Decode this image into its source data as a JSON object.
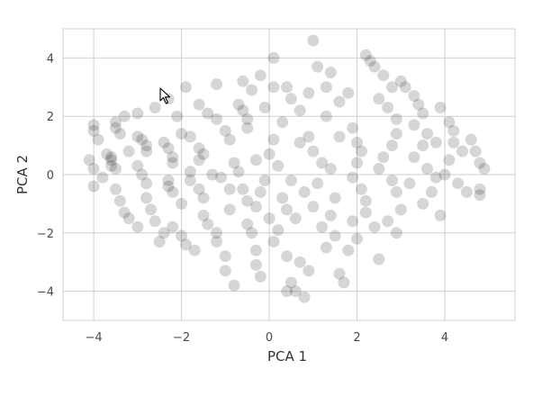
{
  "chart_data": {
    "type": "scatter",
    "title": "",
    "xlabel": "PCA 1",
    "ylabel": "PCA 2",
    "xlim": [
      -4.7,
      5.6
    ],
    "ylim": [
      -5.0,
      5.0
    ],
    "xticks": [
      -4,
      -2,
      0,
      2,
      4
    ],
    "yticks": [
      -4,
      -2,
      0,
      2,
      4
    ],
    "grid": true,
    "point_color": "#000000",
    "point_alpha": 0.16,
    "series": [
      {
        "values_note": "",
        "points": [
          [
            -4.0,
            1.7
          ],
          [
            -4.0,
            1.5
          ],
          [
            -3.9,
            1.2
          ],
          [
            -3.5,
            1.8
          ],
          [
            -3.5,
            1.6
          ],
          [
            -3.4,
            1.4
          ],
          [
            -3.7,
            0.7
          ],
          [
            -3.6,
            0.6
          ],
          [
            -3.6,
            0.5
          ],
          [
            -3.6,
            0.3
          ],
          [
            -3.5,
            0.2
          ],
          [
            -4.1,
            0.5
          ],
          [
            -4.0,
            0.2
          ],
          [
            -4.0,
            -0.4
          ],
          [
            -3.5,
            -0.5
          ],
          [
            -3.4,
            -0.9
          ],
          [
            -3.3,
            -1.3
          ],
          [
            -3.0,
            1.3
          ],
          [
            -2.9,
            1.2
          ],
          [
            -2.8,
            1.0
          ],
          [
            -2.8,
            0.8
          ],
          [
            -2.4,
            1.1
          ],
          [
            -2.3,
            0.9
          ],
          [
            -2.2,
            0.6
          ],
          [
            -2.2,
            0.4
          ],
          [
            -3.0,
            0.3
          ],
          [
            -2.9,
            0.0
          ],
          [
            -2.8,
            -0.3
          ],
          [
            -2.3,
            -0.2
          ],
          [
            -2.3,
            -0.4
          ],
          [
            -2.2,
            -0.6
          ],
          [
            -3.2,
            -1.5
          ],
          [
            -3.0,
            -1.8
          ],
          [
            -2.7,
            -1.2
          ],
          [
            -2.6,
            -1.6
          ],
          [
            -2.5,
            -2.3
          ],
          [
            -2.2,
            -1.8
          ],
          [
            -2.0,
            -2.1
          ],
          [
            -1.9,
            -2.4
          ],
          [
            -2.0,
            1.4
          ],
          [
            -1.8,
            1.3
          ],
          [
            -1.6,
            0.9
          ],
          [
            -1.5,
            0.7
          ],
          [
            -1.6,
            0.5
          ],
          [
            -1.8,
            0.1
          ],
          [
            -1.8,
            -0.2
          ],
          [
            -1.6,
            -0.5
          ],
          [
            -1.5,
            -0.8
          ],
          [
            -1.5,
            -1.4
          ],
          [
            -1.4,
            -1.7
          ],
          [
            -1.2,
            -2.0
          ],
          [
            -1.2,
            -2.3
          ],
          [
            -1.0,
            -2.8
          ],
          [
            -1.0,
            -3.3
          ],
          [
            -0.8,
            -3.8
          ],
          [
            -2.3,
            2.6
          ],
          [
            -1.9,
            3.0
          ],
          [
            -1.6,
            2.4
          ],
          [
            -1.2,
            3.1
          ],
          [
            -0.7,
            2.4
          ],
          [
            -0.6,
            2.2
          ],
          [
            -0.5,
            1.9
          ],
          [
            -0.5,
            1.6
          ],
          [
            -1.0,
            1.5
          ],
          [
            -0.9,
            1.2
          ],
          [
            -0.8,
            0.4
          ],
          [
            -0.7,
            0.1
          ],
          [
            -1.1,
            -0.1
          ],
          [
            -0.9,
            -0.5
          ],
          [
            -0.6,
            -0.5
          ],
          [
            -0.5,
            -0.9
          ],
          [
            -0.3,
            -1.1
          ],
          [
            -0.5,
            -1.7
          ],
          [
            -0.4,
            -2.0
          ],
          [
            -0.3,
            -2.6
          ],
          [
            -0.3,
            -3.1
          ],
          [
            -0.2,
            -3.5
          ],
          [
            -0.4,
            2.9
          ],
          [
            -0.2,
            3.4
          ],
          [
            0.1,
            4.0
          ],
          [
            0.4,
            3.0
          ],
          [
            0.5,
            2.6
          ],
          [
            0.7,
            2.2
          ],
          [
            0.3,
            1.8
          ],
          [
            0.1,
            1.2
          ],
          [
            0.0,
            0.7
          ],
          [
            0.2,
            0.3
          ],
          [
            -0.1,
            -0.2
          ],
          [
            0.3,
            -0.8
          ],
          [
            0.4,
            -1.2
          ],
          [
            0.6,
            -1.5
          ],
          [
            0.2,
            -1.9
          ],
          [
            0.1,
            -2.3
          ],
          [
            0.4,
            -2.8
          ],
          [
            0.7,
            -3.0
          ],
          [
            0.9,
            -3.3
          ],
          [
            0.8,
            -4.2
          ],
          [
            0.6,
            -4.0
          ],
          [
            0.5,
            -3.7
          ],
          [
            0.4,
            -4.0
          ],
          [
            1.0,
            4.6
          ],
          [
            1.1,
            3.7
          ],
          [
            1.4,
            3.5
          ],
          [
            1.3,
            3.0
          ],
          [
            1.6,
            2.5
          ],
          [
            1.3,
            2.0
          ],
          [
            0.9,
            1.3
          ],
          [
            1.0,
            0.8
          ],
          [
            1.2,
            0.4
          ],
          [
            1.4,
            0.2
          ],
          [
            1.1,
            -0.3
          ],
          [
            0.8,
            -0.6
          ],
          [
            1.0,
            -1.1
          ],
          [
            1.4,
            -1.4
          ],
          [
            1.2,
            -1.8
          ],
          [
            1.5,
            -2.1
          ],
          [
            1.6,
            -3.4
          ],
          [
            1.7,
            -3.7
          ],
          [
            1.9,
            1.6
          ],
          [
            2.0,
            1.1
          ],
          [
            2.1,
            0.8
          ],
          [
            2.0,
            0.4
          ],
          [
            1.9,
            -0.1
          ],
          [
            2.1,
            -0.5
          ],
          [
            2.2,
            -0.9
          ],
          [
            2.2,
            -1.3
          ],
          [
            1.9,
            -1.6
          ],
          [
            2.0,
            -2.2
          ],
          [
            1.8,
            -2.6
          ],
          [
            2.5,
            -2.9
          ],
          [
            2.2,
            4.1
          ],
          [
            2.3,
            3.9
          ],
          [
            2.4,
            3.7
          ],
          [
            2.6,
            3.4
          ],
          [
            2.8,
            3.0
          ],
          [
            2.5,
            2.6
          ],
          [
            2.7,
            2.3
          ],
          [
            2.9,
            1.9
          ],
          [
            2.9,
            1.4
          ],
          [
            2.8,
            1.0
          ],
          [
            2.6,
            0.6
          ],
          [
            2.5,
            0.2
          ],
          [
            2.8,
            -0.2
          ],
          [
            2.9,
            -0.6
          ],
          [
            3.0,
            -1.2
          ],
          [
            2.7,
            -1.6
          ],
          [
            2.9,
            -2.0
          ],
          [
            3.0,
            3.2
          ],
          [
            3.1,
            3.0
          ],
          [
            3.3,
            2.7
          ],
          [
            3.4,
            2.4
          ],
          [
            3.5,
            2.1
          ],
          [
            3.3,
            1.7
          ],
          [
            3.6,
            1.4
          ],
          [
            3.5,
            1.0
          ],
          [
            3.3,
            0.6
          ],
          [
            3.6,
            0.2
          ],
          [
            3.8,
            -0.1
          ],
          [
            3.7,
            -0.6
          ],
          [
            3.5,
            -1.0
          ],
          [
            3.9,
            -1.4
          ],
          [
            3.9,
            2.3
          ],
          [
            4.1,
            1.8
          ],
          [
            4.2,
            1.5
          ],
          [
            4.2,
            1.1
          ],
          [
            4.4,
            0.8
          ],
          [
            4.1,
            0.5
          ],
          [
            4.0,
            0.0
          ],
          [
            4.3,
            -0.3
          ],
          [
            4.5,
            -0.6
          ],
          [
            4.6,
            1.2
          ],
          [
            4.7,
            0.8
          ],
          [
            4.8,
            0.4
          ],
          [
            4.9,
            0.2
          ],
          [
            4.8,
            -0.5
          ],
          [
            4.8,
            -0.7
          ],
          [
            -1.2,
            1.9
          ],
          [
            -0.3,
            0.5
          ],
          [
            0.5,
            -0.2
          ],
          [
            1.6,
            1.3
          ],
          [
            -1.3,
            0.0
          ],
          [
            0.7,
            1.1
          ],
          [
            -2.6,
            2.3
          ],
          [
            -3.0,
            2.1
          ],
          [
            -3.3,
            2.0
          ],
          [
            -0.9,
            -1.2
          ],
          [
            0.0,
            -1.5
          ],
          [
            1.5,
            -0.8
          ],
          [
            2.4,
            -1.8
          ],
          [
            3.2,
            -0.3
          ],
          [
            -0.1,
            2.3
          ],
          [
            -1.4,
            2.1
          ],
          [
            0.9,
            2.8
          ],
          [
            1.8,
            2.8
          ],
          [
            -2.8,
            -0.8
          ],
          [
            -3.8,
            -0.1
          ],
          [
            -3.2,
            0.8
          ],
          [
            -2.0,
            -1.0
          ],
          [
            -0.2,
            -0.6
          ],
          [
            1.3,
            -2.5
          ],
          [
            0.1,
            3.0
          ],
          [
            -0.6,
            3.2
          ],
          [
            -2.1,
            2.0
          ],
          [
            -1.7,
            -2.6
          ],
          [
            -2.4,
            -2.0
          ],
          [
            3.8,
            1.1
          ]
        ]
      }
    ]
  },
  "cursor": {
    "icon": "mouse-pointer-icon"
  }
}
